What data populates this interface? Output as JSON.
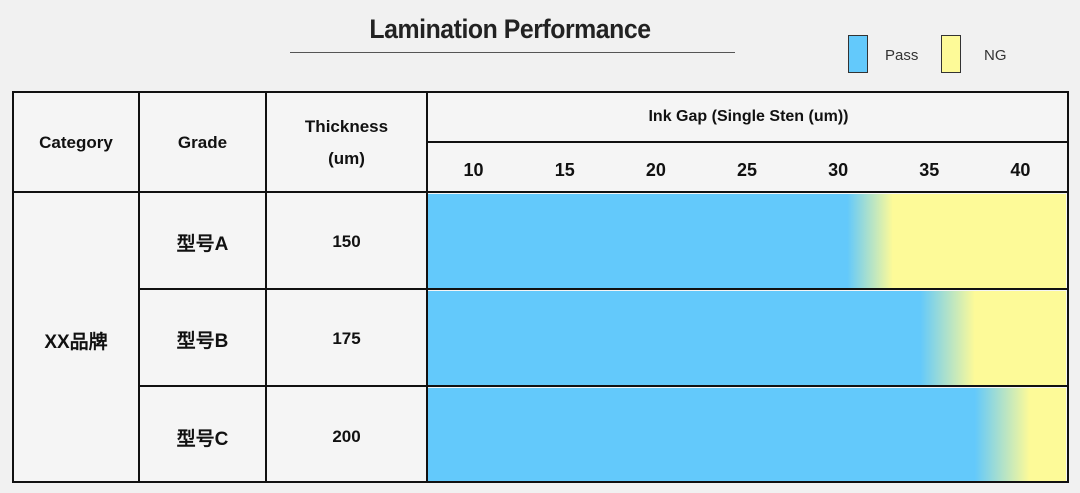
{
  "colors": {
    "pass": "#63c9fb",
    "ng": "#fdfa98"
  },
  "legend": {
    "pass_label": "Pass",
    "ng_label": "NG"
  },
  "table": {
    "category_header": "Category",
    "grade_header": "Grade",
    "thickness_header_line1": "Thickness",
    "thickness_header_line2": "(um)"
  },
  "chart_data": {
    "type": "table",
    "title": "Lamination Performance",
    "xlabel": "Ink Gap (Single Sten (um))",
    "x_ticks": [
      "10",
      "15",
      "20",
      "25",
      "30",
      "35",
      "40"
    ],
    "xlim": [
      7.5,
      42.5
    ],
    "category": "XX品牌",
    "series": [
      {
        "grade": "型号A",
        "thickness": "150",
        "pass_until": 30.5,
        "ng_from": 33
      },
      {
        "grade": "型号B",
        "thickness": "175",
        "pass_until": 34.5,
        "ng_from": 37.5
      },
      {
        "grade": "型号C",
        "thickness": "200",
        "pass_until": 37.5,
        "ng_from": 40.5
      }
    ]
  }
}
